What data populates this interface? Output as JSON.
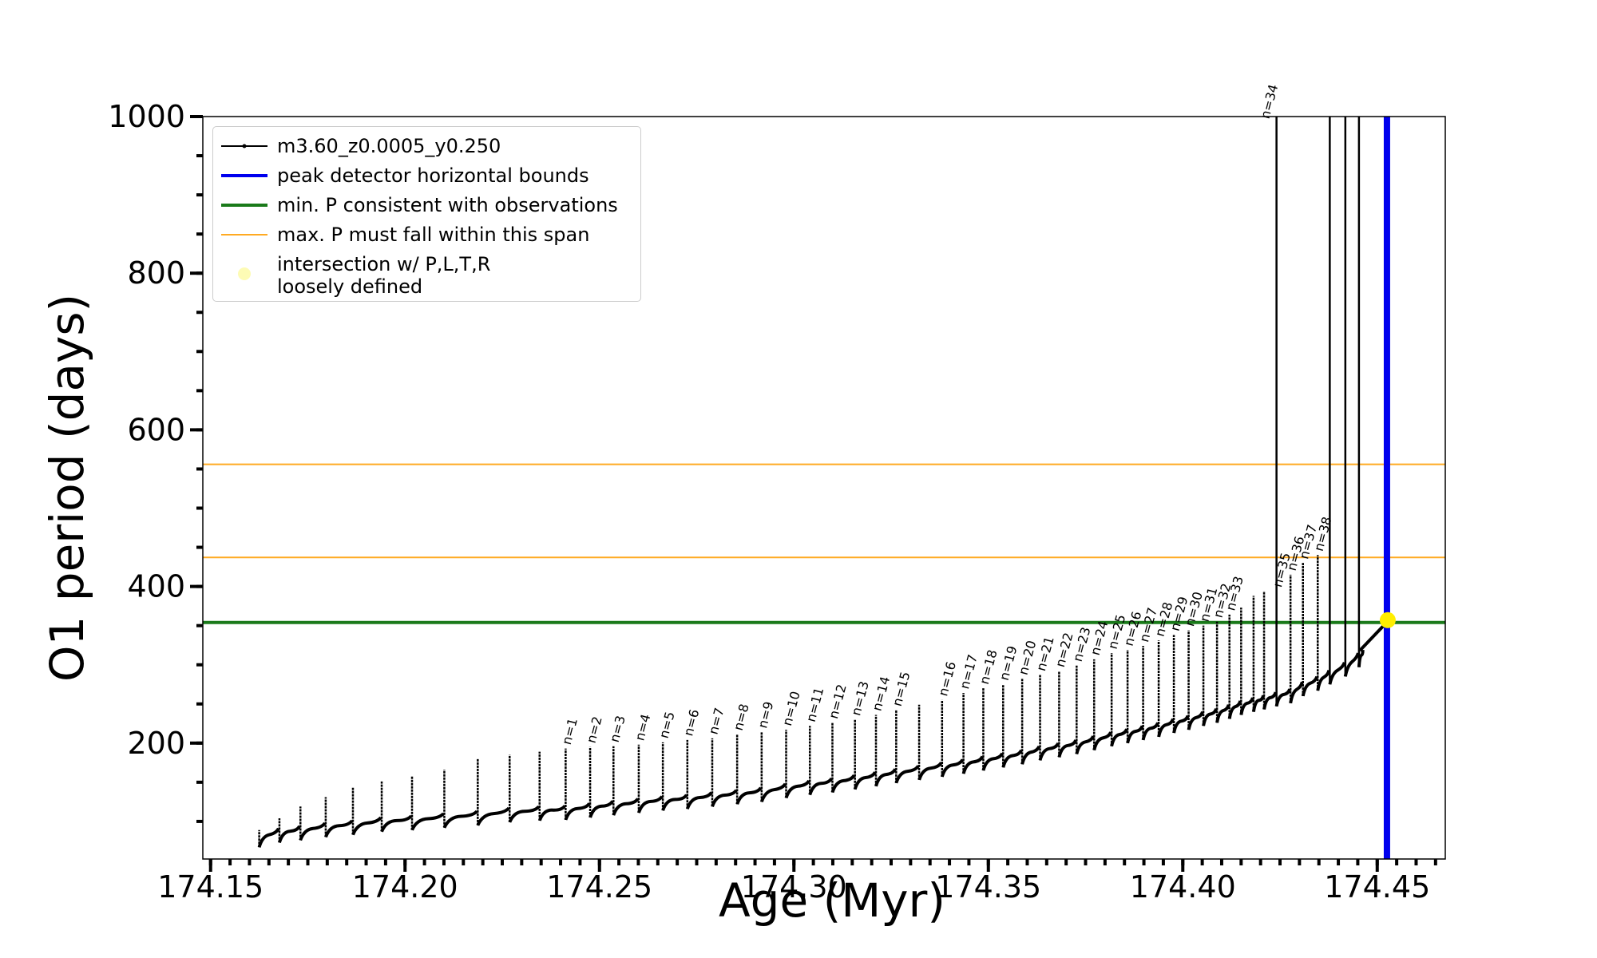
{
  "chart_data": {
    "type": "line",
    "xlabel": "Age (Myr)",
    "ylabel": "O1 period (days)",
    "xlim": [
      174.148,
      174.4675
    ],
    "ylim": [
      52,
      1000
    ],
    "x_ticks": [
      "174.15",
      "174.20",
      "174.25",
      "174.30",
      "174.35",
      "174.40",
      "174.45"
    ],
    "x_tick_values": [
      174.15,
      174.2,
      174.25,
      174.3,
      174.35,
      174.4,
      174.45
    ],
    "y_ticks": [
      "200",
      "400",
      "600",
      "800",
      "1000"
    ],
    "y_tick_values": [
      200,
      400,
      600,
      800,
      1000
    ],
    "legend_position": "top-left",
    "series": [
      {
        "name": "m3.60_z0.0005_y0.250",
        "color": "#000000",
        "pulse_ages": [
          174.1625,
          174.1677,
          174.1731,
          174.1796,
          174.1866,
          174.194,
          174.2018,
          174.2101,
          174.2187,
          174.2269,
          174.2346,
          174.2413,
          174.2476,
          174.2536,
          174.2601,
          174.2663,
          174.2726,
          174.279,
          174.2854,
          174.2917,
          174.298,
          174.3041,
          174.3099,
          174.3157,
          174.3211,
          174.3263,
          174.3322,
          174.3381,
          174.3436,
          174.3487,
          174.3538,
          174.3587,
          174.3633,
          174.3682,
          174.3727,
          174.3772,
          174.3817,
          174.3858,
          174.3898,
          174.3938,
          174.3977,
          174.4015,
          174.4053,
          174.4088,
          174.412,
          174.415,
          174.4182,
          174.4209,
          174.4241,
          174.4277,
          174.4309,
          174.4347,
          174.4378,
          174.4418,
          174.4453
        ],
        "pulse_baseline_days": [
          82,
          88,
          91,
          95,
          98,
          102,
          104,
          107,
          110,
          114,
          116,
          117,
          120,
          123,
          126,
          129,
          131,
          134,
          137,
          140,
          145,
          149,
          152,
          156,
          160,
          164,
          168,
          172,
          176,
          180,
          184,
          188,
          193,
          197,
          201,
          206,
          211,
          215,
          219,
          223,
          228,
          232,
          237,
          241,
          246,
          251,
          255,
          258,
          262,
          266,
          275,
          282,
          290,
          300,
          312
        ],
        "pulse_peak_days": [
          89,
          104,
          119,
          131,
          143,
          151,
          158,
          166,
          180,
          185,
          189,
          193,
          195,
          196,
          198,
          201,
          204,
          206,
          211,
          214,
          217,
          222,
          226,
          230,
          236,
          242,
          249,
          255,
          264,
          270,
          275,
          282,
          287,
          292,
          299,
          307,
          315,
          319,
          324,
          331,
          338,
          344,
          350,
          355,
          364,
          373,
          388,
          394,
          1000,
          415,
          430,
          440,
          1000,
          1000,
          1000
        ],
        "dip_depth_days": 15,
        "final_rise": {
          "x": [
            174.4455,
            174.4526
          ],
          "y": [
            318,
            355
          ]
        }
      }
    ],
    "pulse_labels": [
      "n=1",
      "n=2",
      "n=3",
      "n=4",
      "n=5",
      "n=6",
      "n=7",
      "n=8",
      "n=9",
      "n=10",
      "n=11",
      "n=12",
      "n=13",
      "n=14",
      "n=15",
      "n=16",
      "n=17",
      "n=18",
      "n=19",
      "n=20",
      "n=21",
      "n=22",
      "n=23",
      "n=24",
      "n=25",
      "n=26",
      "n=27",
      "n=28",
      "n=29",
      "n=30",
      "n=31",
      "n=32",
      "n=33",
      "n=34",
      "n=35",
      "n=36",
      "n=37",
      "n=38"
    ],
    "pulse_label_anchors": {
      "first_index": 11,
      "x": [
        174.2413,
        174.2476,
        174.2536,
        174.2601,
        174.2663,
        174.2726,
        174.279,
        174.2854,
        174.2917,
        174.298,
        174.3041,
        174.3099,
        174.3157,
        174.3211,
        174.3263,
        174.3381,
        174.3436,
        174.3487,
        174.3538,
        174.3587,
        174.3633,
        174.3682,
        174.3727,
        174.3772,
        174.3817,
        174.3858,
        174.3898,
        174.3938,
        174.3977,
        174.4015,
        174.4053,
        174.4088,
        174.412,
        174.4209,
        174.4241,
        174.4277,
        174.4309,
        174.4347
      ],
      "y": [
        193,
        195,
        196,
        198,
        201,
        204,
        206,
        211,
        214,
        217,
        222,
        226,
        230,
        236,
        242,
        255,
        264,
        270,
        275,
        282,
        287,
        292,
        299,
        307,
        315,
        319,
        324,
        331,
        338,
        344,
        350,
        355,
        364,
        992,
        394,
        415,
        430,
        440
      ]
    },
    "blue_vertical_x": 174.4525,
    "green_line_y": 354,
    "orange_lines_y": [
      556,
      437
    ],
    "intersection_point": {
      "x": 174.4527,
      "y": 357
    },
    "colors": {
      "blue": "#0000ee",
      "green": "#1a7a1a",
      "orange": "#ffaa22",
      "intersection": "#ffee00",
      "intersection_legend": "#fdfbb5"
    },
    "grid": false
  },
  "legend": {
    "items": [
      {
        "label": "m3.60_z0.0005_y0.250",
        "symbol": "line-marker",
        "color": "#000000"
      },
      {
        "label": "peak detector horizontal bounds",
        "symbol": "thick-line",
        "color": "#0000ee"
      },
      {
        "label": "min. P consistent with observations",
        "symbol": "thick-line",
        "color": "#1a7a1a"
      },
      {
        "label": "max. P must fall within this span",
        "symbol": "thin-line",
        "color": "#ffaa22"
      },
      {
        "label": "intersection w/ P,L,T,R\nloosely defined",
        "symbol": "dot",
        "color": "#fdfbb5"
      }
    ]
  }
}
